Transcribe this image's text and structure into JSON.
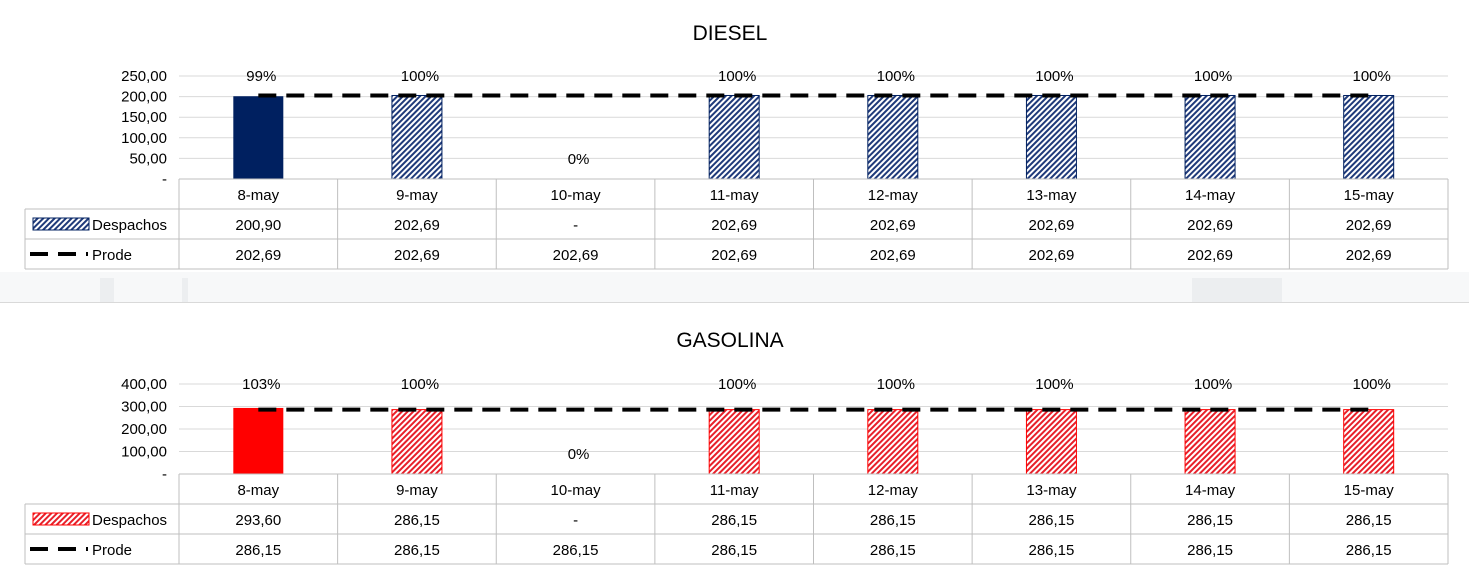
{
  "chart_data": [
    {
      "id": "diesel",
      "type": "bar",
      "title": "DIESEL",
      "categories": [
        "8-may",
        "9-may",
        "10-may",
        "11-may",
        "12-may",
        "13-may",
        "14-may",
        "15-may"
      ],
      "ylim": [
        0,
        250
      ],
      "yticks": [
        0,
        50,
        100,
        150,
        200,
        250
      ],
      "ytick_labels": [
        "-",
        "50,00",
        "100,00",
        "150,00",
        "200,00",
        "250,00"
      ],
      "grid": true,
      "colors": {
        "solid": "#002060",
        "hatch": "#1f3a7a"
      },
      "series": [
        {
          "name": "Despachos",
          "kind": "bar",
          "values": [
            200.9,
            202.69,
            0,
            202.69,
            202.69,
            202.69,
            202.69,
            202.69
          ],
          "table_values": [
            "200,90",
            "202,69",
            "-",
            "202,69",
            "202,69",
            "202,69",
            "202,69",
            "202,69"
          ],
          "hatched": [
            false,
            true,
            true,
            true,
            true,
            true,
            true,
            true
          ]
        },
        {
          "name": "Prode",
          "kind": "dashed-line",
          "values": [
            202.69,
            202.69,
            202.69,
            202.69,
            202.69,
            202.69,
            202.69,
            202.69
          ],
          "table_values": [
            "202,69",
            "202,69",
            "202,69",
            "202,69",
            "202,69",
            "202,69",
            "202,69",
            "202,69"
          ]
        }
      ],
      "data_labels": [
        "99%",
        "100%",
        "0%",
        "100%",
        "100%",
        "100%",
        "100%",
        "100%"
      ]
    },
    {
      "id": "gasolina",
      "type": "bar",
      "title": "GASOLINA",
      "categories": [
        "8-may",
        "9-may",
        "10-may",
        "11-may",
        "12-may",
        "13-may",
        "14-may",
        "15-may"
      ],
      "ylim": [
        0,
        400
      ],
      "yticks": [
        0,
        100,
        200,
        300,
        400
      ],
      "ytick_labels": [
        "-",
        "100,00",
        "200,00",
        "300,00",
        "400,00"
      ],
      "grid": true,
      "colors": {
        "solid": "#ff0000",
        "hatch": "#e8202a"
      },
      "series": [
        {
          "name": "Despachos",
          "kind": "bar",
          "values": [
            293.6,
            286.15,
            0,
            286.15,
            286.15,
            286.15,
            286.15,
            286.15
          ],
          "table_values": [
            "293,60",
            "286,15",
            "-",
            "286,15",
            "286,15",
            "286,15",
            "286,15",
            "286,15"
          ],
          "hatched": [
            false,
            true,
            true,
            true,
            true,
            true,
            true,
            true
          ]
        },
        {
          "name": "Prode",
          "kind": "dashed-line",
          "values": [
            286.15,
            286.15,
            286.15,
            286.15,
            286.15,
            286.15,
            286.15,
            286.15
          ],
          "table_values": [
            "286,15",
            "286,15",
            "286,15",
            "286,15",
            "286,15",
            "286,15",
            "286,15",
            "286,15"
          ]
        }
      ],
      "data_labels": [
        "103%",
        "100%",
        "0%",
        "100%",
        "100%",
        "100%",
        "100%",
        "100%"
      ]
    }
  ]
}
